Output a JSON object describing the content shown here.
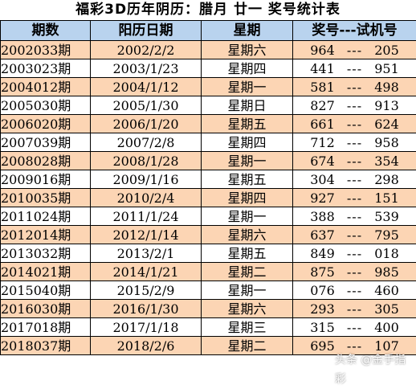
{
  "title": "福彩3D历年阴历：腊月 廿一 奖号统计表",
  "headers": [
    "期数",
    "阳历日期",
    "星期",
    "奖号---试机号"
  ],
  "separator": "---",
  "rows": [
    {
      "issue": "2002033期",
      "date": "2002/2/2",
      "weekday": "星期六",
      "draw": "964",
      "test": "205"
    },
    {
      "issue": "2003023期",
      "date": "2003/1/23",
      "weekday": "星期四",
      "draw": "441",
      "test": "951"
    },
    {
      "issue": "2004012期",
      "date": "2004/1/12",
      "weekday": "星期一",
      "draw": "581",
      "test": "498"
    },
    {
      "issue": "2005030期",
      "date": "2005/1/30",
      "weekday": "星期日",
      "draw": "827",
      "test": "913"
    },
    {
      "issue": "2006020期",
      "date": "2006/1/20",
      "weekday": "星期五",
      "draw": "661",
      "test": "624"
    },
    {
      "issue": "2007039期",
      "date": "2007/2/8",
      "weekday": "星期四",
      "draw": "712",
      "test": "958"
    },
    {
      "issue": "2008028期",
      "date": "2008/1/28",
      "weekday": "星期一",
      "draw": "674",
      "test": "354"
    },
    {
      "issue": "2009016期",
      "date": "2009/1/16",
      "weekday": "星期五",
      "draw": "304",
      "test": "298"
    },
    {
      "issue": "2010035期",
      "date": "2010/2/4",
      "weekday": "星期四",
      "draw": "927",
      "test": "151"
    },
    {
      "issue": "2011024期",
      "date": "2011/1/24",
      "weekday": "星期一",
      "draw": "388",
      "test": "539"
    },
    {
      "issue": "2012014期",
      "date": "2012/1/14",
      "weekday": "星期六",
      "draw": "637",
      "test": "795"
    },
    {
      "issue": "2013032期",
      "date": "2013/2/1",
      "weekday": "星期五",
      "draw": "849",
      "test": "018"
    },
    {
      "issue": "2014021期",
      "date": "2014/1/21",
      "weekday": "星期二",
      "draw": "875",
      "test": "985"
    },
    {
      "issue": "2015040期",
      "date": "2015/2/9",
      "weekday": "星期一",
      "draw": "076",
      "test": "460"
    },
    {
      "issue": "2016030期",
      "date": "2016/1/30",
      "weekday": "星期六",
      "draw": "293",
      "test": "305"
    },
    {
      "issue": "2017018期",
      "date": "2017/1/18",
      "weekday": "星期三",
      "draw": "315",
      "test": "400"
    },
    {
      "issue": "2018037期",
      "date": "2018/2/6",
      "weekday": "星期二",
      "draw": "695",
      "test": "107"
    }
  ],
  "colors": {
    "header_bg": "#b9d3ee",
    "odd_row_bg": "#fcd5b4",
    "even_row_bg": "#ffffff",
    "border": "#000000"
  },
  "watermark": {
    "text": "头条 @金手指彩",
    "icon": "toutiao-logo-icon"
  }
}
